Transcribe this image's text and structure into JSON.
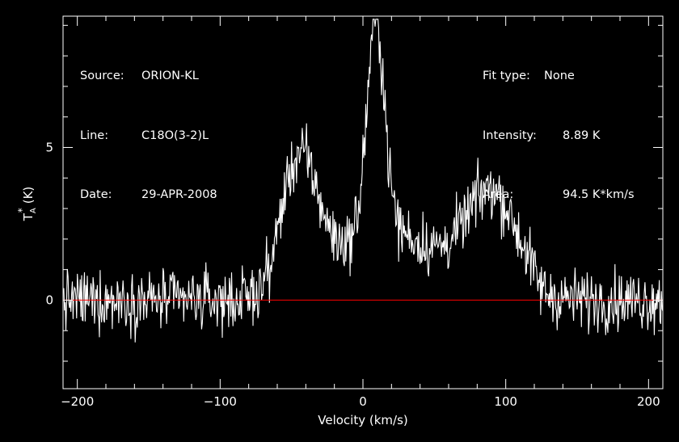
{
  "header_left": {
    "source_label": "Source:",
    "source_value": "ORION-KL",
    "line_label": "Line:",
    "line_value": "C18O(3-2)L",
    "date_label": "Date:",
    "date_value": "29-APR-2008"
  },
  "header_right": {
    "fit_label": "Fit type:",
    "fit_value": "None",
    "intensity_label": "Intensity:",
    "intensity_value": "8.89 K",
    "area_label": "Area:",
    "area_value": "94.5 K*km/s"
  },
  "colors": {
    "background": "#000000",
    "foreground": "#ffffff",
    "baseline": "#ff0000"
  },
  "chart_data": {
    "type": "line",
    "title": "",
    "xlabel": "Velocity (km/s)",
    "ylabel": "T_A* (K)",
    "ylabel_parts": {
      "main": "T",
      "sub": "A",
      "sup": "*",
      "unit": "(K)"
    },
    "xlim": [
      -210,
      210
    ],
    "ylim": [
      -2.9,
      9.3
    ],
    "xticks": [
      -200,
      -100,
      0,
      100,
      200
    ],
    "xtick_labels": [
      "−200",
      "−100",
      "0",
      "100",
      "200"
    ],
    "yticks": [
      0,
      5
    ],
    "ytick_labels": [
      "0",
      "5"
    ],
    "baseline_y": 0,
    "noise_rms_K": 0.7,
    "grid": false,
    "legend": "none",
    "series": [
      {
        "values_note": "noisy spectrum; smoothed envelope given by peaks",
        "peaks": [
          {
            "velocity": -44,
            "amplitude_K": 4.1,
            "width_km_s": 13
          },
          {
            "velocity": 9,
            "amplitude_K": 6.8,
            "width_km_s": 6
          },
          {
            "velocity": 9,
            "amplitude_K": 1.6,
            "width_km_s": 22
          },
          {
            "velocity": 90,
            "amplitude_K": 2.5,
            "width_km_s": 16
          },
          {
            "velocity": 60,
            "amplitude_K": 0.8,
            "width_km_s": 35
          }
        ],
        "pedestal": [
          {
            "from": -60,
            "to": 120,
            "level_K": 0.6
          }
        ],
        "channel_spacing_km_s": 0.5
      }
    ]
  }
}
